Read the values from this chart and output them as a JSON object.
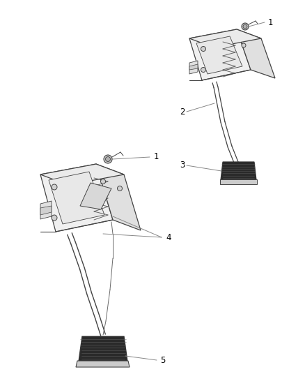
{
  "background_color": "#ffffff",
  "line_color": "#444444",
  "callout_color": "#888888",
  "text_color": "#000000",
  "fig_width": 4.38,
  "fig_height": 5.33,
  "dpi": 100,
  "font_size_num": 8.5
}
